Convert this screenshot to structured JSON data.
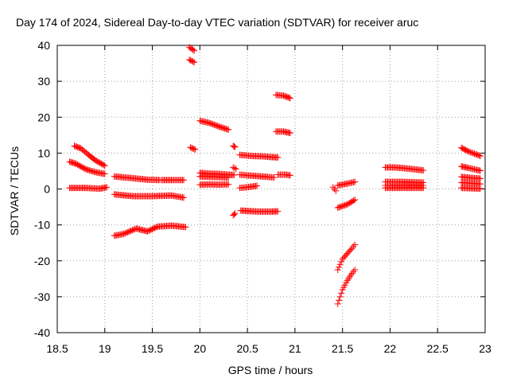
{
  "chart_data": {
    "type": "scatter",
    "title": "Day 174 of 2024, Sidereal Day-to-day VTEC variation (SDTVAR) for receiver aruc",
    "xlabel": "GPS time / hours",
    "ylabel": "SDTVAR / TECUs",
    "xlim": [
      18.5,
      23
    ],
    "ylim": [
      -40,
      40
    ],
    "xticks": [
      18.5,
      19,
      19.5,
      20,
      20.5,
      21,
      21.5,
      22,
      22.5,
      23
    ],
    "yticks": [
      -40,
      -30,
      -20,
      -10,
      0,
      10,
      20,
      30,
      40
    ],
    "grid": true,
    "marker": "+",
    "color": "#ff0000",
    "segments": [
      [
        [
          18.63,
          7.6
        ],
        [
          18.7,
          7.0
        ],
        [
          18.8,
          5.5
        ],
        [
          18.9,
          4.7
        ],
        [
          19.0,
          4.2
        ]
      ],
      [
        [
          18.68,
          12.0
        ],
        [
          18.75,
          11.3
        ],
        [
          18.83,
          9.5
        ],
        [
          18.9,
          8.0
        ],
        [
          19.0,
          6.5
        ]
      ],
      [
        [
          18.63,
          0.3
        ],
        [
          18.8,
          0.3
        ],
        [
          18.95,
          0.1
        ],
        [
          19.02,
          0.5
        ]
      ],
      [
        [
          19.1,
          3.5
        ],
        [
          19.3,
          3.0
        ],
        [
          19.45,
          2.6
        ],
        [
          19.58,
          2.5
        ]
      ],
      [
        [
          19.1,
          -1.5
        ],
        [
          19.3,
          -2.0
        ],
        [
          19.5,
          -2.0
        ],
        [
          19.7,
          -1.8
        ],
        [
          19.83,
          -2.4
        ]
      ],
      [
        [
          19.1,
          -13.0
        ],
        [
          19.2,
          -12.5
        ],
        [
          19.33,
          -11.0
        ],
        [
          19.45,
          -11.8
        ],
        [
          19.55,
          -10.5
        ],
        [
          19.7,
          -10.2
        ],
        [
          19.85,
          -10.6
        ]
      ],
      [
        [
          19.6,
          2.5
        ],
        [
          19.7,
          2.5
        ],
        [
          19.83,
          2.5
        ]
      ],
      [
        [
          19.89,
          39.5
        ],
        [
          19.94,
          38.5
        ]
      ],
      [
        [
          19.89,
          36.0
        ],
        [
          19.94,
          35.3
        ]
      ],
      [
        [
          19.9,
          11.6
        ],
        [
          19.95,
          11.0
        ]
      ],
      [
        [
          20.0,
          19.0
        ],
        [
          20.1,
          18.4
        ],
        [
          20.2,
          17.4
        ],
        [
          20.3,
          16.5
        ]
      ],
      [
        [
          20.0,
          4.5
        ],
        [
          20.1,
          4.3
        ],
        [
          20.2,
          4.2
        ],
        [
          20.3,
          4.0
        ],
        [
          20.36,
          3.9
        ]
      ],
      [
        [
          20.0,
          3.5
        ],
        [
          20.1,
          3.4
        ],
        [
          20.2,
          3.3
        ],
        [
          20.3,
          3.2
        ]
      ],
      [
        [
          20.0,
          1.2
        ],
        [
          20.1,
          1.3
        ],
        [
          20.2,
          1.2
        ],
        [
          20.3,
          1.3
        ]
      ],
      [
        [
          20.35,
          12.0
        ],
        [
          20.37,
          11.7
        ]
      ],
      [
        [
          20.35,
          6.0
        ],
        [
          20.38,
          5.6
        ]
      ],
      [
        [
          20.35,
          -7.3
        ],
        [
          20.37,
          -6.8
        ]
      ],
      [
        [
          20.42,
          9.5
        ],
        [
          20.55,
          9.2
        ],
        [
          20.65,
          9.1
        ],
        [
          20.75,
          8.9
        ],
        [
          20.82,
          8.8
        ]
      ],
      [
        [
          20.42,
          4.0
        ],
        [
          20.5,
          3.8
        ],
        [
          20.6,
          3.6
        ],
        [
          20.7,
          3.4
        ],
        [
          20.78,
          3.2
        ]
      ],
      [
        [
          20.42,
          0.3
        ],
        [
          20.5,
          0.5
        ],
        [
          20.6,
          0.9
        ]
      ],
      [
        [
          20.43,
          -6.0
        ],
        [
          20.55,
          -6.2
        ],
        [
          20.65,
          -6.3
        ],
        [
          20.75,
          -6.3
        ],
        [
          20.82,
          -6.2
        ]
      ],
      [
        [
          20.8,
          26.2
        ],
        [
          20.88,
          26.0
        ],
        [
          20.95,
          25.3
        ]
      ],
      [
        [
          20.8,
          16.0
        ],
        [
          20.88,
          16.0
        ],
        [
          20.95,
          15.6
        ]
      ],
      [
        [
          20.82,
          4.0
        ],
        [
          20.9,
          4.0
        ],
        [
          20.95,
          3.8
        ]
      ],
      [
        [
          21.4,
          0.5
        ],
        [
          21.43,
          -0.5
        ]
      ],
      [
        [
          21.45,
          1.0
        ],
        [
          21.55,
          1.5
        ],
        [
          21.63,
          2.0
        ]
      ],
      [
        [
          21.45,
          -5.2
        ],
        [
          21.55,
          -4.3
        ],
        [
          21.63,
          -3.0
        ]
      ],
      [
        [
          21.45,
          -22.5
        ],
        [
          21.5,
          -19.5
        ],
        [
          21.55,
          -18.0
        ],
        [
          21.6,
          -16.5
        ],
        [
          21.63,
          -15.5
        ]
      ],
      [
        [
          21.45,
          -32.0
        ],
        [
          21.5,
          -28.0
        ],
        [
          21.55,
          -25.5
        ],
        [
          21.6,
          -23.5
        ],
        [
          21.63,
          -22.5
        ]
      ],
      [
        [
          21.95,
          6.0
        ],
        [
          22.05,
          6.0
        ],
        [
          22.15,
          5.8
        ],
        [
          22.25,
          5.5
        ],
        [
          22.35,
          5.2
        ]
      ],
      [
        [
          21.95,
          2.0
        ],
        [
          22.1,
          2.0
        ],
        [
          22.25,
          1.9
        ],
        [
          22.35,
          1.8
        ]
      ],
      [
        [
          21.95,
          1.0
        ],
        [
          22.1,
          1.0
        ],
        [
          22.25,
          1.0
        ],
        [
          22.35,
          1.0
        ]
      ],
      [
        [
          21.95,
          0.3
        ],
        [
          22.1,
          0.3
        ],
        [
          22.25,
          0.3
        ],
        [
          22.35,
          0.3
        ]
      ],
      [
        [
          22.75,
          11.5
        ],
        [
          22.82,
          10.5
        ],
        [
          22.9,
          9.7
        ],
        [
          22.95,
          9.2
        ]
      ],
      [
        [
          22.75,
          6.3
        ],
        [
          22.82,
          5.9
        ],
        [
          22.9,
          5.4
        ],
        [
          22.95,
          5.1
        ]
      ],
      [
        [
          22.75,
          3.4
        ],
        [
          22.85,
          3.1
        ],
        [
          22.95,
          2.9
        ]
      ],
      [
        [
          22.75,
          1.8
        ],
        [
          22.85,
          1.6
        ],
        [
          22.95,
          1.4
        ]
      ],
      [
        [
          22.75,
          0.3
        ],
        [
          22.85,
          0.2
        ],
        [
          22.95,
          0.1
        ]
      ]
    ]
  }
}
